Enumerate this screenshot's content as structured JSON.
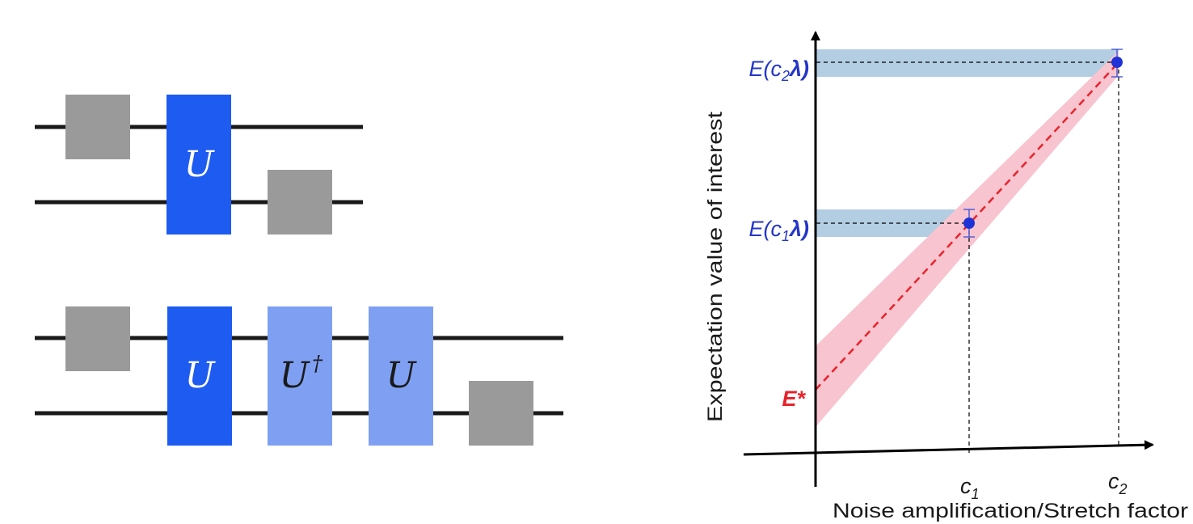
{
  "circuits": {
    "top": {
      "gates": [
        {
          "kind": "noise"
        },
        {
          "kind": "unitary",
          "label": "U"
        },
        {
          "kind": "noise"
        }
      ]
    },
    "bottom": {
      "gates": [
        {
          "kind": "noise"
        },
        {
          "kind": "unitary",
          "label": "U"
        },
        {
          "kind": "unitary-dagger",
          "label": "U",
          "superscript": "†"
        },
        {
          "kind": "unitary-folded",
          "label": "U"
        },
        {
          "kind": "noise"
        }
      ]
    }
  },
  "colors": {
    "noise_gate": "#9a9a9a",
    "unitary": "#1e5bf0",
    "unitary_folded": "#7fa0f2",
    "wire": "#1a1a1a",
    "band_blue": "#b3cde3",
    "band_pink": "#f7c4cf",
    "fit_line": "#e8232b",
    "points": "#1f32d6",
    "label_blue": "#2336c8",
    "label_red": "#e8232b"
  },
  "chart_data": {
    "type": "scatter",
    "xlabel": "Noise amplification/Stretch factor",
    "ylabel": "Expectation value of interest",
    "x_ticks": [
      {
        "base": "c",
        "sub": "1"
      },
      {
        "base": "c",
        "sub": "2"
      }
    ],
    "y_labels": {
      "point1": {
        "pre": "E(c",
        "sub": "1",
        "post": "λ)"
      },
      "point2": {
        "pre": "E(c",
        "sub": "2",
        "post": "λ)"
      },
      "extrapolated": "E*"
    },
    "points": [
      {
        "name": "c1",
        "x": 1,
        "y": 1
      },
      {
        "name": "c2",
        "x": 2,
        "y": 2
      }
    ],
    "fit": "linear extrapolation to zero noise"
  }
}
